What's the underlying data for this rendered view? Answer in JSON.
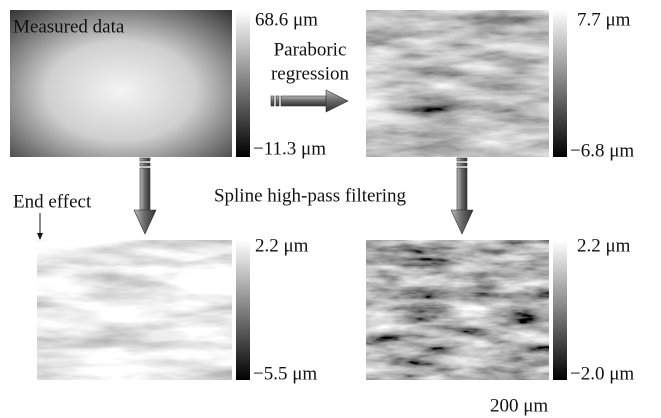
{
  "panels": [
    {
      "max": "68.6 μm",
      "min": "−11.3 μm"
    },
    {
      "max": "7.7 μm",
      "min": "−6.8 μm"
    },
    {
      "max": "2.2 μm",
      "min": "−5.5 μm"
    },
    {
      "max": "2.2 μm",
      "min": "−2.0 μm"
    }
  ],
  "labels": {
    "measured": "Measured data",
    "regression": [
      "Paraboric",
      "regression"
    ],
    "filtering": "Spline high-pass filtering",
    "end_effect": "End effect",
    "scale": "200 μm"
  }
}
